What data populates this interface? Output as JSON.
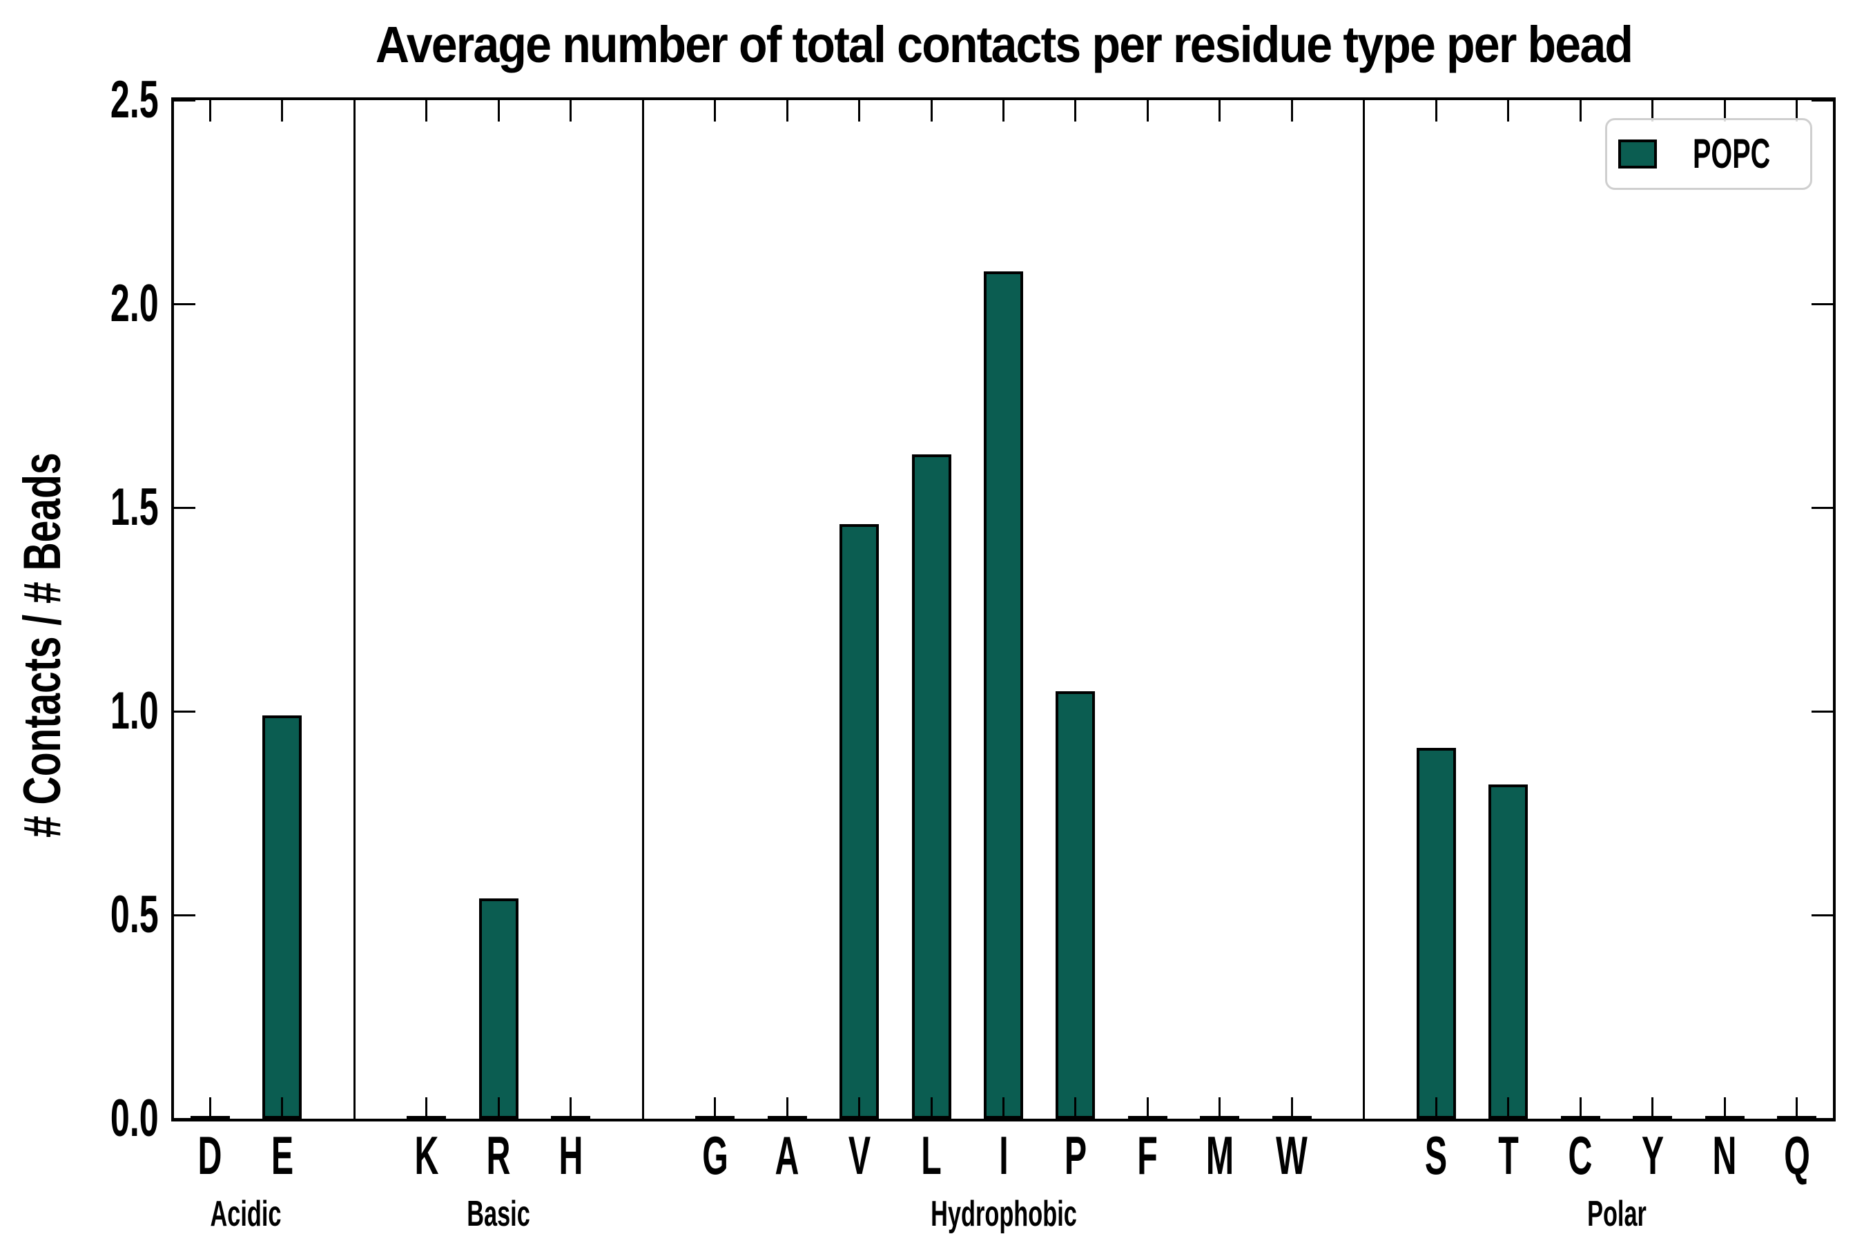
{
  "title": "Average number of total contacts per residue type per bead",
  "chart_data": {
    "type": "bar",
    "title": "Average number of total contacts per residue type per bead",
    "ylabel": "# Contacts / # Beads",
    "ylim": [
      0,
      2.5
    ],
    "yticks": [
      "0.0",
      "0.5",
      "1.0",
      "1.5",
      "2.0",
      "2.5"
    ],
    "grid": false,
    "legend": {
      "label": "POPC",
      "position": "upper right"
    },
    "groups": [
      {
        "label": "Acidic",
        "categories": [
          "D",
          "E"
        ],
        "values": [
          0.0,
          0.99
        ]
      },
      {
        "label": "Basic",
        "categories": [
          "K",
          "R",
          "H"
        ],
        "values": [
          0.0,
          0.54,
          0.0
        ]
      },
      {
        "label": "Hydrophobic",
        "categories": [
          "G",
          "A",
          "V",
          "L",
          "I",
          "P",
          "F",
          "M",
          "W"
        ],
        "values": [
          0.0,
          0.0,
          1.46,
          1.63,
          2.08,
          1.05,
          0.0,
          0.0,
          0.0
        ]
      },
      {
        "label": "Polar",
        "categories": [
          "S",
          "T",
          "C",
          "Y",
          "N",
          "Q"
        ],
        "values": [
          0.91,
          0.82,
          0.0,
          0.0,
          0.0,
          0.0
        ]
      }
    ],
    "colors": {
      "bar_fill": "#0b5d51",
      "bar_edge": "#000000",
      "axis": "#000000",
      "legend_border": "#cfcfcf"
    }
  }
}
